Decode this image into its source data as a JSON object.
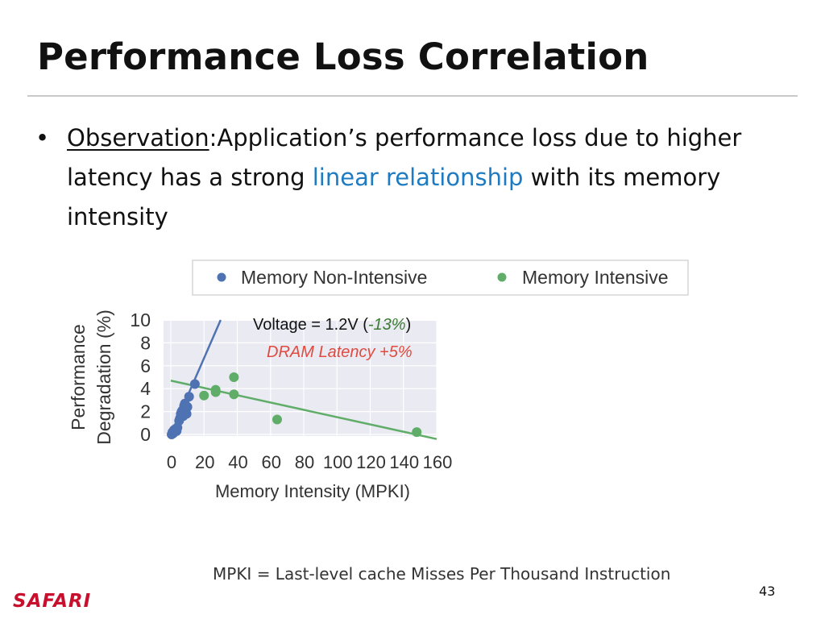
{
  "slide": {
    "title": "Performance Loss Correlation",
    "bullet": {
      "label": "Observation",
      "colon": ":",
      "text_before": "Application’s performance loss due to higher latency has a strong ",
      "highlight": "linear relationship",
      "text_after": " with its memory intensity"
    },
    "footnote": "MPKI = Last-level cache Misses Per Thousand Instruction",
    "page_number": "43",
    "logo": "SAFARI"
  },
  "colors": {
    "non_intensive": "#4f72b2",
    "intensive": "#5fad68",
    "highlight": "#1f7bc1",
    "dram_latency": "#e04a3f",
    "voltage_pct": "#3a7a32",
    "logo": "#c8102e"
  },
  "chart_data": {
    "type": "scatter",
    "xlabel": "Memory Intensity (MPKI)",
    "ylabel_lines": [
      "Performance",
      "Degradation (%)"
    ],
    "xlim": [
      0,
      160
    ],
    "ylim": [
      0,
      10
    ],
    "x_ticks": [
      "0",
      "20",
      "40",
      "60",
      "80",
      "100",
      "120",
      "140",
      "160"
    ],
    "y_ticks": [
      "0",
      "2",
      "4",
      "6",
      "8",
      "10"
    ],
    "grid": true,
    "legend_placement": "top",
    "annotation": {
      "line1_prefix": "Voltage = 1.2V (",
      "line1_pct": "-13%",
      "line1_suffix": ")",
      "line2": "DRAM Latency +5%"
    },
    "series": [
      {
        "name": "Memory Non-Intensive",
        "color": "#4f72b2",
        "points": [
          [
            0.5,
            0.0
          ],
          [
            1.0,
            0.2
          ],
          [
            1.5,
            0.1
          ],
          [
            2.0,
            0.4
          ],
          [
            2.5,
            0.3
          ],
          [
            3.0,
            0.5
          ],
          [
            3.5,
            0.3
          ],
          [
            4.0,
            0.6
          ],
          [
            5.0,
            1.2
          ],
          [
            5.5,
            1.4
          ],
          [
            6.0,
            1.8
          ],
          [
            6.5,
            2.0
          ],
          [
            7.0,
            2.1
          ],
          [
            7.5,
            1.6
          ],
          [
            8.0,
            2.5
          ],
          [
            8.5,
            2.7
          ],
          [
            9.0,
            2.2
          ],
          [
            9.5,
            1.8
          ],
          [
            10.0,
            2.4
          ],
          [
            11.0,
            3.3
          ],
          [
            14.5,
            4.4
          ]
        ],
        "trend": [
          [
            0,
            0.0
          ],
          [
            30,
            10.0
          ]
        ]
      },
      {
        "name": "Memory Intensive",
        "color": "#5fad68",
        "points": [
          [
            20,
            3.4
          ],
          [
            27,
            3.9
          ],
          [
            27,
            3.7
          ],
          [
            38,
            3.5
          ],
          [
            38,
            5.0
          ],
          [
            64,
            1.3
          ],
          [
            148,
            0.2
          ]
        ],
        "trend": [
          [
            0,
            4.7
          ],
          [
            160,
            -0.4
          ]
        ]
      }
    ]
  }
}
